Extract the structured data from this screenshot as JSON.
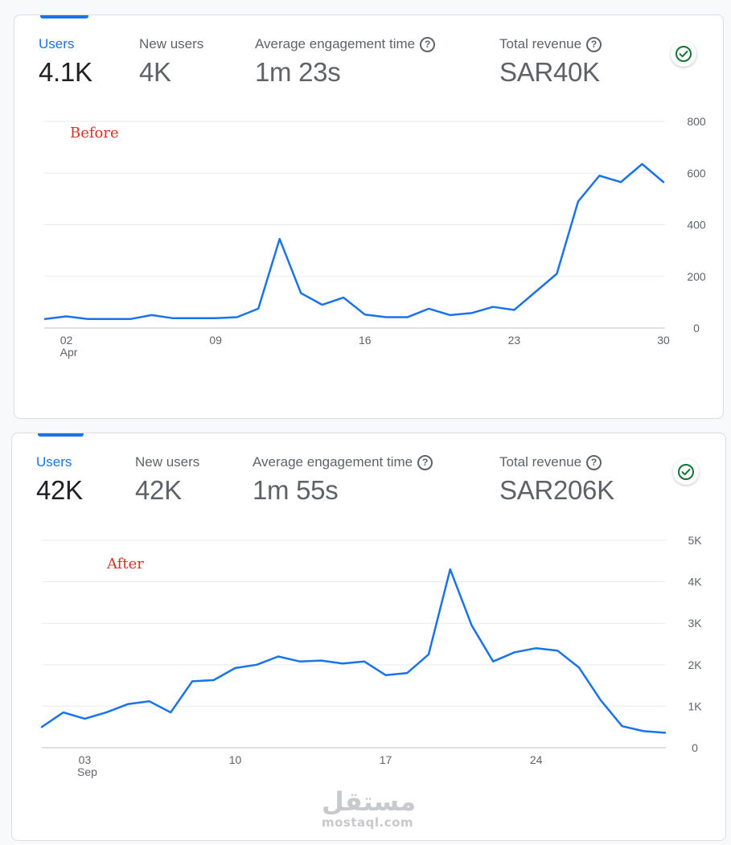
{
  "cards": [
    {
      "metrics": [
        {
          "label": "Users",
          "value": "4.1K",
          "help": false,
          "active": true
        },
        {
          "label": "New users",
          "value": "4K",
          "help": false,
          "active": false
        },
        {
          "label": "Average engagement time",
          "value": "1m 23s",
          "help": true,
          "active": false
        },
        {
          "label": "Total revenue",
          "value": "SAR40K",
          "help": true,
          "active": false
        }
      ],
      "annotation": "Before"
    },
    {
      "metrics": [
        {
          "label": "Users",
          "value": "42K",
          "help": false,
          "active": true
        },
        {
          "label": "New users",
          "value": "42K",
          "help": false,
          "active": false
        },
        {
          "label": "Average engagement time",
          "value": "1m 55s",
          "help": true,
          "active": false
        },
        {
          "label": "Total revenue",
          "value": "SAR206K",
          "help": true,
          "active": false
        }
      ],
      "annotation": "After"
    }
  ],
  "watermark": {
    "arabic": "مستقل",
    "latin": "mostaql.com"
  },
  "colors": {
    "accent": "#1a73e8",
    "line": "#1a73e8",
    "annotation": "#d93025",
    "check": "#137333"
  },
  "chart_data": [
    {
      "type": "line",
      "title": "",
      "xlabel": "",
      "ylabel": "",
      "ylim": [
        0,
        800
      ],
      "yticks": [
        0,
        200,
        400,
        600,
        800
      ],
      "ytick_labels": [
        "0",
        "200",
        "400",
        "600",
        "800"
      ],
      "x_start_day": 1,
      "x_end_day": 30,
      "xticks": [
        {
          "day": 2,
          "label": "02",
          "sublabel": "Apr"
        },
        {
          "day": 9,
          "label": "09",
          "sublabel": ""
        },
        {
          "day": 16,
          "label": "16",
          "sublabel": ""
        },
        {
          "day": 23,
          "label": "23",
          "sublabel": ""
        },
        {
          "day": 30,
          "label": "30",
          "sublabel": ""
        }
      ],
      "series": [
        {
          "values": [
            35,
            45,
            35,
            35,
            35,
            50,
            38,
            38,
            38,
            42,
            75,
            345,
            135,
            90,
            118,
            52,
            42,
            42,
            75,
            50,
            58,
            82,
            70,
            140,
            210,
            490,
            590,
            565,
            635,
            565
          ]
        }
      ]
    },
    {
      "type": "line",
      "title": "",
      "xlabel": "",
      "ylabel": "",
      "ylim": [
        0,
        5000
      ],
      "yticks": [
        0,
        1000,
        2000,
        3000,
        4000,
        5000
      ],
      "ytick_labels": [
        "0",
        "1K",
        "2K",
        "3K",
        "4K",
        "5K"
      ],
      "x_start_day": 1,
      "x_end_day": 30,
      "xticks": [
        {
          "day": 3,
          "label": "03",
          "sublabel": "Sep"
        },
        {
          "day": 10,
          "label": "10",
          "sublabel": ""
        },
        {
          "day": 17,
          "label": "17",
          "sublabel": ""
        },
        {
          "day": 24,
          "label": "24",
          "sublabel": ""
        }
      ],
      "series": [
        {
          "values": [
            500,
            850,
            700,
            850,
            1050,
            1120,
            850,
            1600,
            1630,
            1920,
            2000,
            2200,
            2080,
            2100,
            2030,
            2080,
            1750,
            1800,
            2250,
            4300,
            2950,
            2080,
            2300,
            2400,
            2340,
            1930,
            1150,
            520,
            400,
            360
          ]
        }
      ]
    }
  ]
}
